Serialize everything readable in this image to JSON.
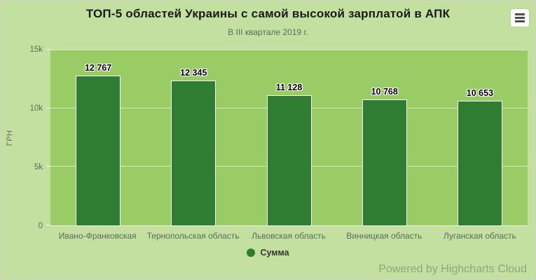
{
  "header": {
    "title": "ТОП-5 областей Украины с самой высокой зарплатой в АПК",
    "subtitle": "В III квартале 2019 г."
  },
  "legend": {
    "label": "Сумма"
  },
  "credits": "Powered by Highcharts Cloud",
  "colors": {
    "background": "#c3e0a0",
    "plot_background": "#99cc64",
    "bar": "#2e7d32",
    "bar_border": "#ffffff",
    "grid": "rgba(255,255,255,0.55)",
    "muted_text": "#5f6b5c",
    "title_text": "#1a1a1a"
  },
  "chart_data": {
    "type": "bar",
    "title": "ТОП-5 областей Украины с самой высокой зарплатой в АПК",
    "subtitle": "В III квартале 2019 г.",
    "categories": [
      "Ивано-Франковская",
      "Тернопольская область",
      "Львовская область",
      "Винницкая область",
      "Луганская область"
    ],
    "series": [
      {
        "name": "Сумма",
        "values": [
          12767,
          12345,
          11128,
          10768,
          10653
        ]
      }
    ],
    "value_labels": [
      "12 767",
      "12 345",
      "11 128",
      "10 768",
      "10 653"
    ],
    "xlabel": "",
    "ylabel": "ГРН",
    "ylim": [
      0,
      15000
    ],
    "yticks": [
      {
        "value": 0,
        "label": "0"
      },
      {
        "value": 5000,
        "label": "5k"
      },
      {
        "value": 10000,
        "label": "10k"
      },
      {
        "value": 15000,
        "label": "15k"
      }
    ],
    "grid": true,
    "legend_position": "bottom"
  }
}
